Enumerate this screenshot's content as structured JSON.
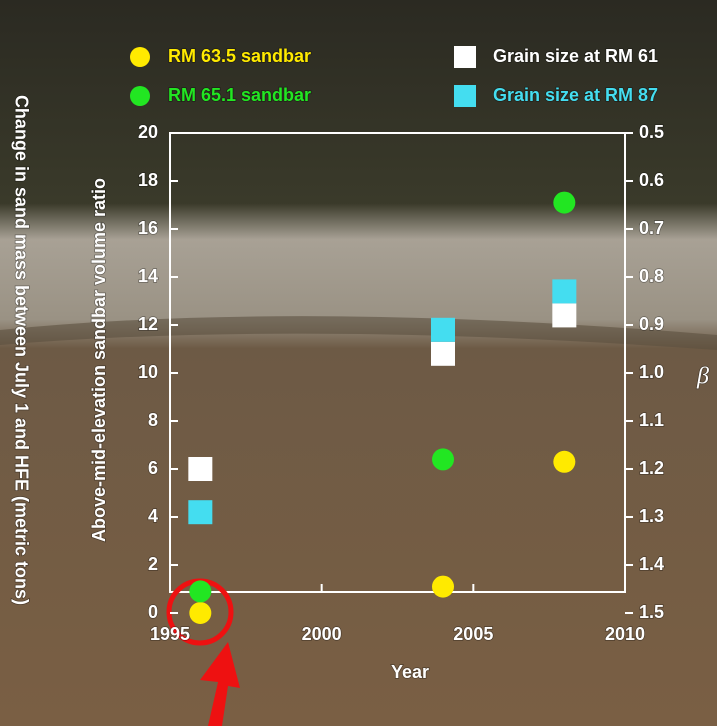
{
  "chart_data": {
    "type": "scatter",
    "x_label": "Year",
    "y_label": "Above-mid-elevation sandbar volume ratio",
    "y_label_outer": "Change in sand mass between July 1 and HFE (metric tons)",
    "y2_label": "β",
    "xlim": [
      1995,
      2010
    ],
    "xticks": [
      1995,
      2000,
      2005,
      2010
    ],
    "ylim": [
      0,
      20
    ],
    "yticks": [
      0,
      2,
      4,
      6,
      8,
      10,
      12,
      14,
      16,
      18,
      20
    ],
    "y2lim": [
      1.5,
      0.5
    ],
    "y2ticks": [
      0.5,
      0.6,
      0.7,
      0.8,
      0.9,
      {
        "value": 1.0,
        "label": "1.0"
      },
      1.1,
      1.2,
      1.3,
      1.4,
      1.5
    ],
    "series": [
      {
        "name": "RM 63.5 sandbar",
        "color": "#ffea00",
        "marker": "circle",
        "x": [
          1996,
          2004,
          2008
        ],
        "values": [
          0.0,
          1.1,
          6.3
        ]
      },
      {
        "name": "RM 65.1 sandbar",
        "color": "#22e622",
        "marker": "circle",
        "x": [
          1996,
          2004,
          2008
        ],
        "values": [
          0.9,
          6.4,
          17.1
        ]
      },
      {
        "name": "Grain size at RM 61",
        "color": "#ffffff",
        "marker": "square",
        "axis": "y2",
        "x": [
          1996,
          2004,
          2008
        ],
        "values": [
          1.2,
          0.96,
          0.88
        ]
      },
      {
        "name": "Grain size at RM 87",
        "color": "#44ddf0",
        "marker": "square",
        "axis": "y2",
        "x": [
          1996,
          2004,
          2008
        ],
        "values": [
          1.29,
          0.91,
          0.83
        ]
      }
    ]
  }
}
